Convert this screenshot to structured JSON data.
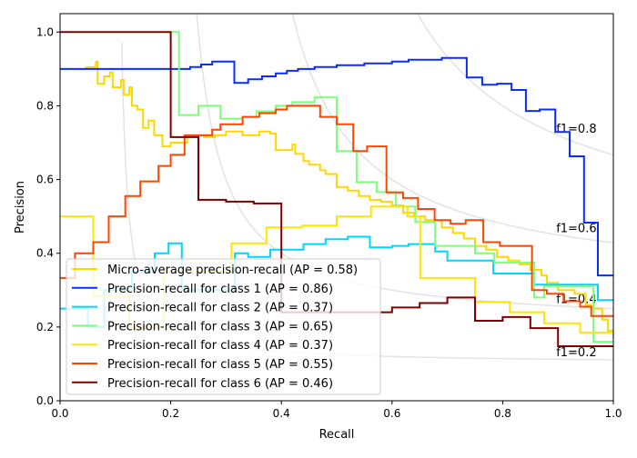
{
  "chart_data": {
    "type": "line",
    "title": "",
    "xlabel": "Recall",
    "ylabel": "Precision",
    "xlim": [
      0,
      1.0
    ],
    "ylim": [
      0,
      1.05
    ],
    "xticks": [
      "0.0",
      "0.2",
      "0.4",
      "0.6",
      "0.8",
      "1.0"
    ],
    "yticks": [
      "0.0",
      "0.2",
      "0.4",
      "0.6",
      "0.8",
      "1.0"
    ],
    "grid": false,
    "legend_position": "lower-left",
    "iso_f1": [
      {
        "f1": 0.2,
        "label": "f1=0.2"
      },
      {
        "f1": 0.4,
        "label": "f1=0.4"
      },
      {
        "f1": 0.6,
        "label": "f1=0.6"
      },
      {
        "f1": 0.8,
        "label": "f1=0.8"
      }
    ],
    "series": [
      {
        "name": "Micro-average precision-recall (AP = 0.58)",
        "color": "#ffd700",
        "width": 2,
        "points": [
          [
            0.045,
            0.905
          ],
          [
            0.065,
            0.92
          ],
          [
            0.068,
            0.86
          ],
          [
            0.08,
            0.88
          ],
          [
            0.09,
            0.89
          ],
          [
            0.095,
            0.85
          ],
          [
            0.11,
            0.87
          ],
          [
            0.115,
            0.83
          ],
          [
            0.125,
            0.85
          ],
          [
            0.13,
            0.8
          ],
          [
            0.14,
            0.79
          ],
          [
            0.15,
            0.74
          ],
          [
            0.16,
            0.76
          ],
          [
            0.17,
            0.72
          ],
          [
            0.185,
            0.69
          ],
          [
            0.2,
            0.7
          ],
          [
            0.23,
            0.72
          ],
          [
            0.26,
            0.715
          ],
          [
            0.28,
            0.72
          ],
          [
            0.3,
            0.73
          ],
          [
            0.33,
            0.72
          ],
          [
            0.36,
            0.73
          ],
          [
            0.38,
            0.725
          ],
          [
            0.39,
            0.68
          ],
          [
            0.42,
            0.695
          ],
          [
            0.425,
            0.67
          ],
          [
            0.44,
            0.65
          ],
          [
            0.45,
            0.64
          ],
          [
            0.47,
            0.625
          ],
          [
            0.48,
            0.615
          ],
          [
            0.5,
            0.58
          ],
          [
            0.52,
            0.57
          ],
          [
            0.54,
            0.555
          ],
          [
            0.56,
            0.545
          ],
          [
            0.58,
            0.54
          ],
          [
            0.6,
            0.53
          ],
          [
            0.62,
            0.51
          ],
          [
            0.64,
            0.5
          ],
          [
            0.66,
            0.49
          ],
          [
            0.69,
            0.47
          ],
          [
            0.71,
            0.455
          ],
          [
            0.73,
            0.44
          ],
          [
            0.75,
            0.42
          ],
          [
            0.77,
            0.41
          ],
          [
            0.79,
            0.39
          ],
          [
            0.81,
            0.38
          ],
          [
            0.83,
            0.37
          ],
          [
            0.85,
            0.355
          ],
          [
            0.87,
            0.34
          ],
          [
            0.88,
            0.32
          ],
          [
            0.9,
            0.3
          ],
          [
            0.93,
            0.29
          ],
          [
            0.95,
            0.26
          ],
          [
            0.96,
            0.25
          ],
          [
            0.98,
            0.22
          ],
          [
            0.99,
            0.19
          ],
          [
            1.0,
            0.17
          ]
        ]
      },
      {
        "name": "Precision-recall for class 1 (AP = 0.86)",
        "color": "#0a2cff",
        "width": 2,
        "points": [
          [
            0,
            0.9
          ],
          [
            0.235,
            0.905
          ],
          [
            0.255,
            0.912
          ],
          [
            0.275,
            0.92
          ],
          [
            0.315,
            0.862
          ],
          [
            0.34,
            0.872
          ],
          [
            0.365,
            0.88
          ],
          [
            0.39,
            0.888
          ],
          [
            0.41,
            0.895
          ],
          [
            0.43,
            0.9
          ],
          [
            0.46,
            0.905
          ],
          [
            0.5,
            0.91
          ],
          [
            0.55,
            0.915
          ],
          [
            0.6,
            0.92
          ],
          [
            0.63,
            0.925
          ],
          [
            0.69,
            0.93
          ],
          [
            0.735,
            0.877
          ],
          [
            0.763,
            0.857
          ],
          [
            0.79,
            0.86
          ],
          [
            0.816,
            0.843
          ],
          [
            0.842,
            0.786
          ],
          [
            0.867,
            0.79
          ],
          [
            0.895,
            0.729
          ],
          [
            0.921,
            0.663
          ],
          [
            0.947,
            0.483
          ],
          [
            0.972,
            0.34
          ],
          [
            1.0,
            0.34
          ]
        ]
      },
      {
        "name": "Precision-recall for class 2 (AP = 0.37)",
        "color": "#00d4ff",
        "width": 2,
        "points": [
          [
            0,
            0.25
          ],
          [
            0.05,
            0.2
          ],
          [
            0.08,
            0.3
          ],
          [
            0.13,
            0.35
          ],
          [
            0.171,
            0.4
          ],
          [
            0.196,
            0.427
          ],
          [
            0.22,
            0.3
          ],
          [
            0.316,
            0.4
          ],
          [
            0.34,
            0.39
          ],
          [
            0.38,
            0.41
          ],
          [
            0.44,
            0.425
          ],
          [
            0.48,
            0.438
          ],
          [
            0.52,
            0.445
          ],
          [
            0.56,
            0.416
          ],
          [
            0.6,
            0.42
          ],
          [
            0.63,
            0.425
          ],
          [
            0.678,
            0.405
          ],
          [
            0.7,
            0.38
          ],
          [
            0.783,
            0.345
          ],
          [
            0.857,
            0.315
          ],
          [
            0.972,
            0.273
          ],
          [
            1.0,
            0.273
          ]
        ]
      },
      {
        "name": "Precision-recall for class 3 (AP = 0.65)",
        "color": "#7dff7a",
        "width": 2,
        "points": [
          [
            0.2,
            1.0
          ],
          [
            0.215,
            0.775
          ],
          [
            0.25,
            0.8
          ],
          [
            0.29,
            0.765
          ],
          [
            0.33,
            0.77
          ],
          [
            0.355,
            0.785
          ],
          [
            0.39,
            0.8
          ],
          [
            0.42,
            0.81
          ],
          [
            0.46,
            0.823
          ],
          [
            0.5,
            0.677
          ],
          [
            0.536,
            0.593
          ],
          [
            0.572,
            0.566
          ],
          [
            0.607,
            0.527
          ],
          [
            0.642,
            0.485
          ],
          [
            0.678,
            0.42
          ],
          [
            0.75,
            0.4
          ],
          [
            0.785,
            0.375
          ],
          [
            0.857,
            0.28
          ],
          [
            0.875,
            0.31
          ],
          [
            0.964,
            0.16
          ],
          [
            1.0,
            0.16
          ]
        ]
      },
      {
        "name": "Precision-recall for class 4 (AP = 0.37)",
        "color": "#ffe500",
        "width": 2,
        "points": [
          [
            0,
            0.5
          ],
          [
            0.06,
            0.283
          ],
          [
            0.125,
            0.2
          ],
          [
            0.187,
            0.35
          ],
          [
            0.25,
            0.35
          ],
          [
            0.31,
            0.427
          ],
          [
            0.373,
            0.47
          ],
          [
            0.437,
            0.475
          ],
          [
            0.5,
            0.5
          ],
          [
            0.562,
            0.527
          ],
          [
            0.628,
            0.5
          ],
          [
            0.651,
            0.333
          ],
          [
            0.75,
            0.268
          ],
          [
            0.813,
            0.24
          ],
          [
            0.875,
            0.21
          ],
          [
            0.94,
            0.185
          ],
          [
            1.0,
            0.185
          ]
        ]
      },
      {
        "name": "Precision-recall for class 5 (AP = 0.55)",
        "color": "#ff4600",
        "width": 2,
        "points": [
          [
            0,
            0.333
          ],
          [
            0.027,
            0.4
          ],
          [
            0.06,
            0.43
          ],
          [
            0.088,
            0.5
          ],
          [
            0.118,
            0.555
          ],
          [
            0.145,
            0.595
          ],
          [
            0.178,
            0.637
          ],
          [
            0.2,
            0.667
          ],
          [
            0.225,
            0.72
          ],
          [
            0.275,
            0.735
          ],
          [
            0.29,
            0.75
          ],
          [
            0.33,
            0.77
          ],
          [
            0.36,
            0.78
          ],
          [
            0.39,
            0.79
          ],
          [
            0.41,
            0.8
          ],
          [
            0.47,
            0.77
          ],
          [
            0.5,
            0.75
          ],
          [
            0.53,
            0.677
          ],
          [
            0.555,
            0.69
          ],
          [
            0.59,
            0.565
          ],
          [
            0.62,
            0.55
          ],
          [
            0.647,
            0.52
          ],
          [
            0.677,
            0.49
          ],
          [
            0.706,
            0.48
          ],
          [
            0.733,
            0.49
          ],
          [
            0.765,
            0.43
          ],
          [
            0.795,
            0.42
          ],
          [
            0.853,
            0.3
          ],
          [
            0.88,
            0.29
          ],
          [
            0.91,
            0.27
          ],
          [
            0.94,
            0.255
          ],
          [
            0.96,
            0.23
          ],
          [
            1.0,
            0.23
          ]
        ]
      },
      {
        "name": "Precision-recall for class 6 (AP = 0.46)",
        "color": "#7f0000",
        "width": 2,
        "points": [
          [
            0,
            1.0
          ],
          [
            0.2,
            0.715
          ],
          [
            0.25,
            0.545
          ],
          [
            0.3,
            0.54
          ],
          [
            0.35,
            0.535
          ],
          [
            0.4,
            0.24
          ],
          [
            0.6,
            0.253
          ],
          [
            0.65,
            0.265
          ],
          [
            0.7,
            0.28
          ],
          [
            0.75,
            0.217
          ],
          [
            0.8,
            0.227
          ],
          [
            0.85,
            0.197
          ],
          [
            0.9,
            0.148
          ],
          [
            1.0,
            0.148
          ]
        ]
      }
    ]
  }
}
